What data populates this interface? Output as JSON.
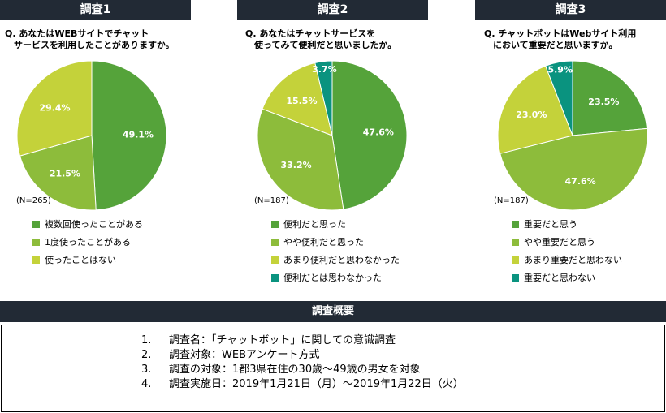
{
  "colors": {
    "c1": "#55a33a",
    "c2": "#8dbc3b",
    "c3": "#c4d23a",
    "c4": "#0a937f",
    "header": "#222a35"
  },
  "surveys": [
    {
      "header": "調査1",
      "question": "Q. あなたはWEBサイトでチャット\n　サービスを利用したことがありますか。",
      "n": "(N=265)"
    },
    {
      "header": "調査2",
      "question": "Q. あなたはチャットサービスを\n　使ってみて便利だと思いましたか。",
      "n": "(N=187)"
    },
    {
      "header": "調査3",
      "question": "Q. チャットボットはWebサイト利用\n　において重要だと思いますか。",
      "n": "(N=187)"
    }
  ],
  "chart_data": [
    {
      "type": "pie",
      "title": "調査1",
      "labels": [
        "複数回使ったことがある",
        "1度使ったことがある",
        "使ったことはない"
      ],
      "values": [
        49.1,
        21.5,
        29.4
      ],
      "value_labels": [
        "49.1%",
        "21.5%",
        "29.4%"
      ],
      "colors": [
        "#55a33a",
        "#8dbc3b",
        "#c4d23a"
      ]
    },
    {
      "type": "pie",
      "title": "調査2",
      "labels": [
        "便利だと思った",
        "やや便利だと思った",
        "あまり便利だと思わなかった",
        "便利だとは思わなかった"
      ],
      "values": [
        47.6,
        33.2,
        15.5,
        3.7
      ],
      "value_labels": [
        "47.6%",
        "33.2%",
        "15.5%",
        "3.7%"
      ],
      "colors": [
        "#55a33a",
        "#8dbc3b",
        "#c4d23a",
        "#0a937f"
      ]
    },
    {
      "type": "pie",
      "title": "調査3",
      "labels": [
        "重要だと思う",
        "やや重要だと思う",
        "あまり重要だと思わない",
        "重要だと思わない"
      ],
      "values": [
        23.5,
        47.6,
        23.0,
        5.9
      ],
      "value_labels": [
        "23.5%",
        "47.6%",
        "23.0%",
        "5.9%"
      ],
      "colors": [
        "#55a33a",
        "#8dbc3b",
        "#c4d23a",
        "#0a937f"
      ]
    }
  ],
  "summary": {
    "header": "調査概要",
    "items": [
      {
        "num": "1.",
        "text": "調査名：「チャットボット」に関しての意識調査"
      },
      {
        "num": "2.",
        "text": "調査対象：WEBアンケート方式"
      },
      {
        "num": "3.",
        "text": "調査の対象：1都3県在住の30歳～49歳の男女を対象"
      },
      {
        "num": "4.",
        "text": "調査実施日：2019年1月21日（月）～2019年1月22日（火）"
      }
    ]
  }
}
